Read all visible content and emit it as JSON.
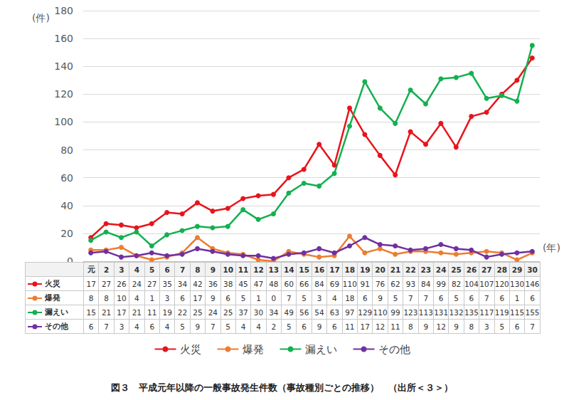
{
  "chart_data": {
    "type": "line",
    "title": "図３　平成元年以降の一般事故発生件数（事故種別ごとの推移）　（出所＜３＞）",
    "y_label": "(件)",
    "x_label": "(年)",
    "categories": [
      "元",
      "2",
      "3",
      "4",
      "5",
      "6",
      "7",
      "8",
      "9",
      "10",
      "11",
      "12",
      "13",
      "14",
      "15",
      "16",
      "17",
      "18",
      "19",
      "20",
      "21",
      "22",
      "23",
      "24",
      "25",
      "26",
      "27",
      "28",
      "29",
      "30"
    ],
    "series": [
      {
        "name": "火災",
        "color": "#e8141b",
        "values": [
          17,
          27,
          26,
          24,
          27,
          35,
          34,
          42,
          36,
          38,
          45,
          47,
          48,
          60,
          66,
          84,
          69,
          110,
          91,
          76,
          62,
          93,
          84,
          99,
          82,
          104,
          107,
          120,
          130,
          146
        ]
      },
      {
        "name": "爆発",
        "color": "#ed7d31",
        "values": [
          8,
          8,
          10,
          4,
          1,
          3,
          6,
          17,
          9,
          6,
          5,
          1,
          0,
          7,
          5,
          3,
          4,
          18,
          6,
          9,
          5,
          7,
          7,
          6,
          5,
          6,
          7,
          6,
          1,
          6
        ]
      },
      {
        "name": "漏えい",
        "color": "#14b050",
        "values": [
          15,
          21,
          17,
          21,
          11,
          19,
          22,
          25,
          24,
          25,
          37,
          30,
          34,
          49,
          56,
          54,
          63,
          97,
          129,
          110,
          99,
          123,
          113,
          131,
          132,
          135,
          117,
          119,
          115,
          155
        ]
      },
      {
        "name": "その他",
        "color": "#7030a0",
        "values": [
          6,
          7,
          3,
          4,
          6,
          4,
          5,
          9,
          7,
          5,
          4,
          4,
          2,
          5,
          6,
          9,
          6,
          11,
          17,
          12,
          11,
          8,
          9,
          12,
          9,
          8,
          3,
          5,
          6,
          7
        ]
      }
    ],
    "ylim": [
      0,
      180
    ],
    "yticks": [
      0,
      20,
      40,
      60,
      80,
      100,
      120,
      140,
      160,
      180
    ],
    "grid": true,
    "legend": "bottom",
    "marker": "circle"
  }
}
